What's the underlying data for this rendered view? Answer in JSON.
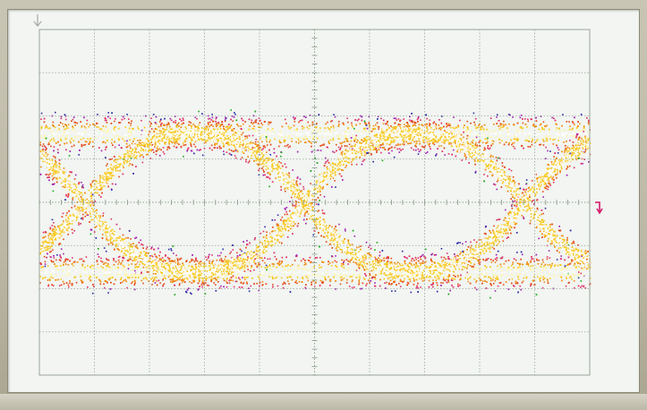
{
  "scope": {
    "grid": {
      "divisions_x": 10,
      "divisions_y": 8,
      "minor_ticks_per_division": 5
    },
    "colors": {
      "background": "#f2f5f1",
      "graticule": "#9aa49a",
      "center_axis": "#8a9a8a",
      "density_palette": [
        "#19a81e",
        "#2a2aa8",
        "#a020b4",
        "#e0306a",
        "#e54818",
        "#f08a10",
        "#f8c820",
        "#fff6b0",
        "#ffffff"
      ],
      "trigger_marker": "#d6186c",
      "top_marker": "#a8a8a8"
    },
    "icons": {
      "trigger_level": "trigger-level-icon",
      "trigger_position": "trigger-position-icon"
    },
    "eye_pattern": {
      "unit_interval_divisions": 4,
      "crossings_at_divisions": [
        0.8,
        4.8,
        8.8
      ],
      "level_high_div": -1.6,
      "level_low_div": 1.6
    }
  }
}
